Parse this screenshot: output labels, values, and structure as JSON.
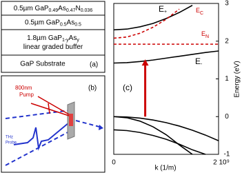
{
  "panel_a": {
    "label": "(a)",
    "layers": [
      {
        "lines": [
          [
            {
              "text": "0.5µm GaP"
            },
            {
              "sub": "0.49"
            },
            {
              "text": "As"
            },
            {
              "sub": "0.47"
            },
            {
              "text": "N"
            },
            {
              "sub": "0.036"
            }
          ]
        ]
      },
      {
        "lines": [
          [
            {
              "text": "0.5µm GaP"
            },
            {
              "sub": "0.5"
            },
            {
              "text": "As"
            },
            {
              "sub": "0.5"
            }
          ]
        ]
      },
      {
        "lines": [
          [
            {
              "text": "1.8µm GaP"
            },
            {
              "sub": "1-y"
            },
            {
              "text": "As"
            },
            {
              "sub": "y"
            }
          ],
          [
            {
              "text": "linear graded buffer"
            }
          ]
        ]
      },
      {
        "lines": [
          [
            {
              "text": "GaP Substrate"
            }
          ]
        ]
      }
    ]
  },
  "panel_b": {
    "label": "(b)",
    "pump_lines": [
      "800nm",
      "Pump"
    ],
    "probe_lines": [
      "THz",
      "Probe"
    ]
  },
  "chart_data": {
    "type": "line",
    "panel_label": "(c)",
    "x_label": "k (1/m)",
    "y_label": "Energy (eV)",
    "xlim": [
      0,
      2000000000
    ],
    "xticks": [
      0,
      {
        "value": 2000000000,
        "label": "2 10⁹"
      }
    ],
    "ylim": [
      -1,
      3
    ],
    "yticks": [
      -1,
      0,
      1,
      2,
      3
    ],
    "series": [
      {
        "label": "E",
        "label_sub": "+",
        "color": "#000000",
        "dashed": false,
        "x": [
          0,
          250000000,
          500000000,
          750000000,
          1000000000,
          1250000000,
          1500000000
        ],
        "values": [
          2.3,
          2.32,
          2.38,
          2.47,
          2.6,
          2.76,
          2.95
        ]
      },
      {
        "label": "E",
        "label_sub": "C",
        "color": "#cc0000",
        "dashed": true,
        "x": [
          0,
          250000000,
          500000000,
          750000000,
          1000000000,
          1250000000
        ],
        "values": [
          2.08,
          2.11,
          2.21,
          2.37,
          2.58,
          2.85
        ]
      },
      {
        "label": "E",
        "label_sub": "N",
        "color": "#cc0000",
        "dashed": true,
        "x": [
          0,
          2000000000
        ],
        "values": [
          1.92,
          1.92
        ]
      },
      {
        "label": "E",
        "label_sub": "-",
        "color": "#000000",
        "dashed": false,
        "x": [
          0,
          250000000,
          500000000,
          750000000,
          1000000000,
          1250000000,
          1500000000,
          1750000000,
          2000000000
        ],
        "values": [
          1.42,
          1.43,
          1.46,
          1.5,
          1.55,
          1.6,
          1.65,
          1.7,
          1.74
        ]
      },
      {
        "color": "#000000",
        "dashed": false,
        "x": [
          0,
          250000000,
          500000000,
          750000000,
          1000000000,
          1250000000,
          1500000000,
          1750000000,
          2000000000
        ],
        "values": [
          0,
          -0.01,
          -0.04,
          -0.09,
          -0.16,
          -0.25,
          -0.36,
          -0.49,
          -0.64
        ]
      },
      {
        "color": "#000000",
        "dashed": false,
        "x": [
          0,
          250000000,
          500000000,
          750000000,
          1000000000,
          1250000000,
          1500000000
        ],
        "values": [
          0,
          -0.03,
          -0.12,
          -0.27,
          -0.48,
          -0.75,
          -1.0
        ]
      },
      {
        "color": "#000000",
        "dashed": false,
        "x": [
          0,
          250000000,
          500000000,
          750000000,
          1000000000,
          1250000000,
          1500000000,
          1750000000
        ],
        "values": [
          -0.35,
          -0.37,
          -0.42,
          -0.5,
          -0.6,
          -0.73,
          -0.88,
          -1.0
        ]
      }
    ],
    "arrow": {
      "x": 600000000,
      "from": 0,
      "to": 1.5,
      "color": "#cc0000"
    }
  }
}
